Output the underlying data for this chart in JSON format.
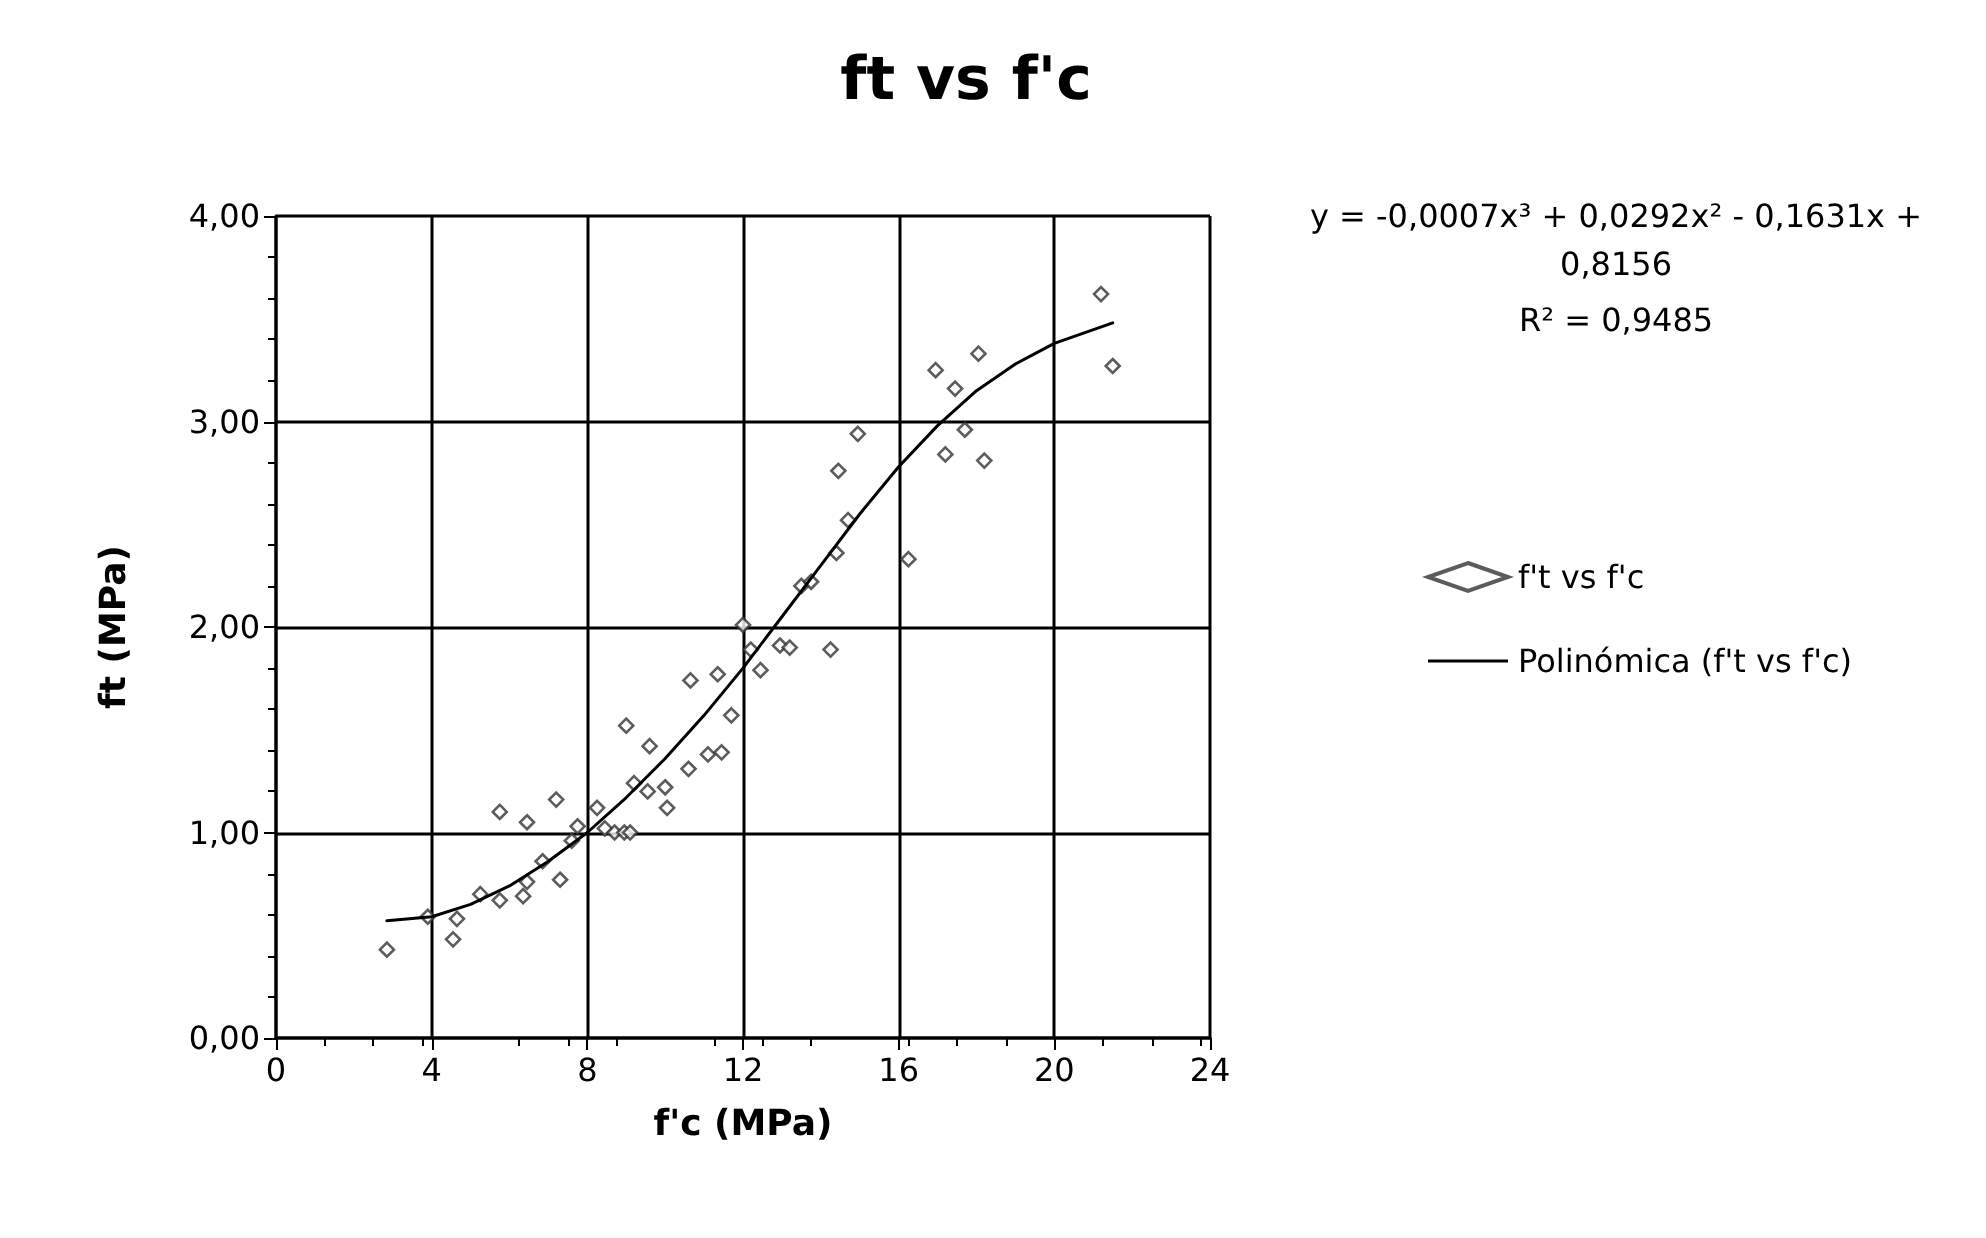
{
  "chart_data": {
    "type": "scatter",
    "title": "ft vs f'c",
    "xlabel": "f'c (MPa)",
    "ylabel": "ft (MPa)",
    "xlim": [
      0,
      24
    ],
    "xticks": [
      0,
      4,
      8,
      12,
      16,
      20,
      24
    ],
    "ylim": [
      0,
      4
    ],
    "yticks": [
      {
        "value": 0,
        "label": "0,00"
      },
      {
        "value": 1,
        "label": "1,00"
      },
      {
        "value": 2,
        "label": "2,00"
      },
      {
        "value": 3,
        "label": "3,00"
      },
      {
        "value": 4,
        "label": "4,00"
      }
    ],
    "grid": true,
    "legend": "right",
    "marker": "diamond",
    "annotations": [
      "y = -0,0007x³ + 0,0292x² - 0,1631x + 0,8156",
      "R² = 0,9485"
    ],
    "series": [
      {
        "name": "f't vs f'c",
        "color": "#333333",
        "x": [
          2.85,
          3.9,
          4.55,
          4.65,
          5.25,
          5.75,
          5.75,
          6.35,
          6.45,
          6.45,
          6.85,
          7.2,
          7.3,
          7.6,
          7.75,
          8.25,
          8.45,
          8.7,
          8.95,
          9.0,
          9.1,
          9.2,
          9.55,
          9.6,
          10.0,
          10.05,
          10.6,
          10.65,
          11.1,
          11.35,
          11.45,
          11.7,
          12.0,
          12.2,
          12.45,
          12.95,
          13.2,
          13.5,
          13.75,
          14.25,
          14.4,
          14.45,
          14.7,
          14.95,
          16.25,
          16.95,
          17.2,
          17.45,
          17.7,
          18.05,
          18.2,
          21.2,
          21.5
        ],
        "values": [
          0.43,
          0.59,
          0.48,
          0.58,
          0.7,
          0.67,
          1.1,
          0.69,
          1.05,
          0.76,
          0.86,
          1.16,
          0.77,
          0.96,
          1.03,
          1.12,
          1.02,
          1.0,
          1.0,
          1.52,
          1.0,
          1.24,
          1.2,
          1.42,
          1.22,
          1.12,
          1.31,
          1.74,
          1.38,
          1.77,
          1.39,
          1.57,
          2.01,
          1.89,
          1.79,
          1.91,
          1.9,
          2.2,
          2.22,
          1.89,
          2.36,
          2.76,
          2.52,
          2.94,
          2.33,
          3.25,
          2.84,
          3.16,
          2.96,
          3.33,
          2.81,
          3.62,
          3.27
        ]
      },
      {
        "name": "Polinómica (f't vs f'c)",
        "type": "line",
        "color": "#000000",
        "line_style": "solid",
        "marker": "none",
        "x": [
          2.85,
          4,
          5,
          6,
          7,
          8,
          9,
          10,
          11,
          12,
          13,
          14,
          15,
          16,
          17,
          18,
          19,
          20,
          21.5
        ],
        "values": [
          0.57,
          0.59,
          0.65,
          0.74,
          0.86,
          1.0,
          1.17,
          1.36,
          1.57,
          1.8,
          2.05,
          2.3,
          2.55,
          2.78,
          2.98,
          3.15,
          3.28,
          3.38,
          3.48
        ]
      }
    ]
  }
}
